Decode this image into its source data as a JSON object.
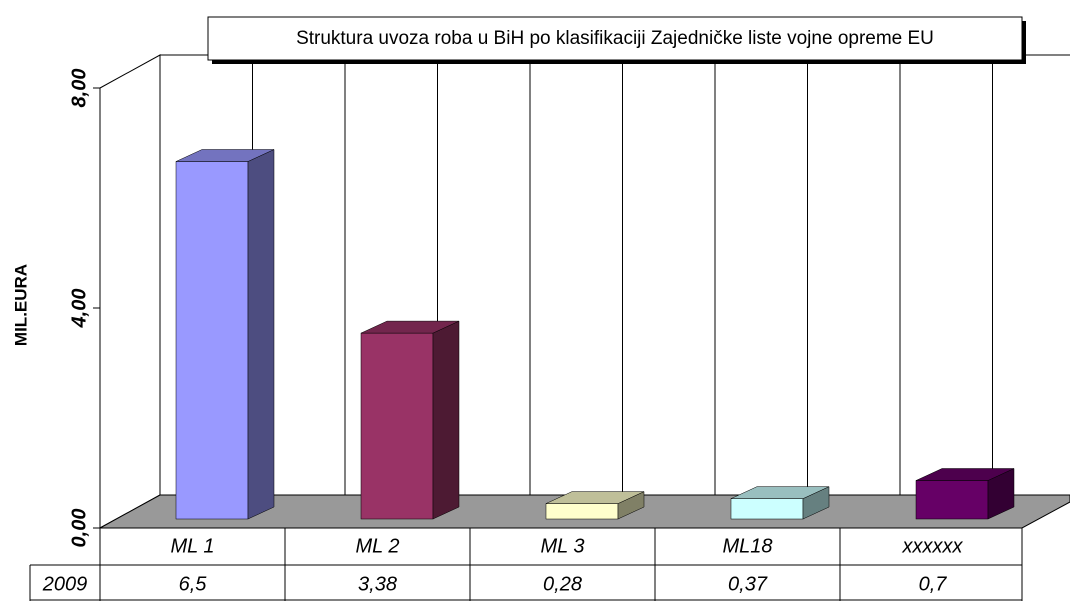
{
  "chart_data": {
    "type": "bar3d",
    "title": "Struktura uvoza roba u BiH po klasifikaciji Zajedničke liste vojne opreme EU",
    "y_label": "MIL.EURA",
    "categories": [
      "ML 1",
      "ML 2",
      "ML 3",
      "ML18",
      "xxxxxx"
    ],
    "series": [
      {
        "name": "2009",
        "colors": [
          "#9999ff",
          "#993366",
          "#ffffcc",
          "#ccffff",
          "#660066"
        ],
        "values": [
          6.5,
          3.38,
          0.28,
          0.37,
          0.7
        ],
        "value_labels": [
          "6,5",
          "3,38",
          "0,28",
          "0,37",
          "0,7"
        ]
      }
    ],
    "ylim": [
      0,
      8
    ],
    "yticks": [
      {
        "value": 0,
        "label": "0,00"
      },
      {
        "value": 4,
        "label": "4,00"
      },
      {
        "value": 8,
        "label": "8,00"
      }
    ],
    "data_table": true
  }
}
